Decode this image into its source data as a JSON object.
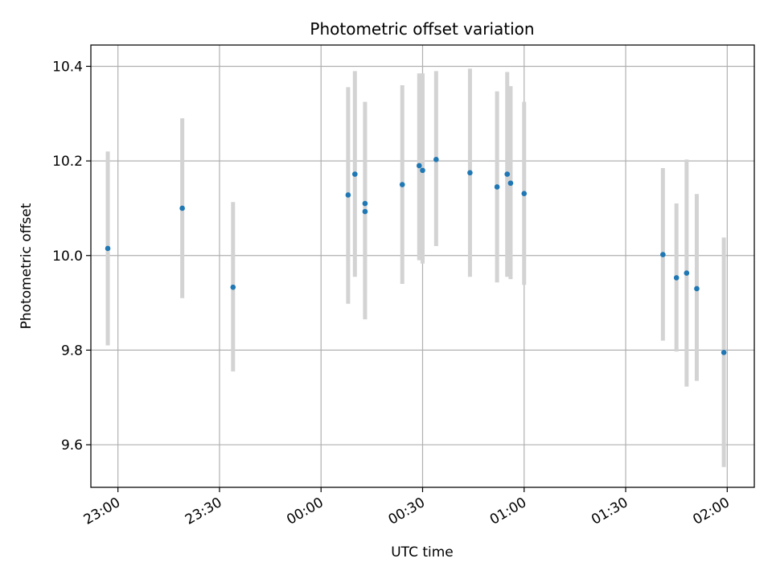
{
  "chart_data": {
    "type": "scatter",
    "title": "Photometric offset variation",
    "xlabel": "UTC time",
    "ylabel": "Photometric offset",
    "x_axis": {
      "kind": "time",
      "range": [
        "22:52",
        "02:08"
      ],
      "ticks": [
        "23:00",
        "23:30",
        "00:00",
        "00:30",
        "01:00",
        "01:30",
        "02:00"
      ]
    },
    "y_axis": {
      "range": [
        9.51,
        10.445
      ],
      "ticks": [
        "9.6",
        "9.8",
        "10.0",
        "10.2",
        "10.4"
      ]
    },
    "grid": true,
    "error_bar_color": "#d3d3d3",
    "point_color": "#1f77b4",
    "series": [
      {
        "points": [
          {
            "x": "22:57",
            "y": 10.015,
            "ylow": 9.81,
            "yhigh": 10.22
          },
          {
            "x": "23:19",
            "y": 10.1,
            "ylow": 9.91,
            "yhigh": 10.29
          },
          {
            "x": "23:34",
            "y": 9.933,
            "ylow": 9.755,
            "yhigh": 10.113
          },
          {
            "x": "00:08",
            "y": 10.128,
            "ylow": 9.898,
            "yhigh": 10.356
          },
          {
            "x": "00:10",
            "y": 10.172,
            "ylow": 9.955,
            "yhigh": 10.39
          },
          {
            "x": "00:13",
            "y": 10.11,
            "ylow": 9.925,
            "yhigh": 10.295
          },
          {
            "x": "00:13",
            "y": 10.093,
            "ylow": 9.865,
            "yhigh": 10.325
          },
          {
            "x": "00:24",
            "y": 10.15,
            "ylow": 9.94,
            "yhigh": 10.36
          },
          {
            "x": "00:29",
            "y": 10.19,
            "ylow": 9.99,
            "yhigh": 10.385
          },
          {
            "x": "00:30",
            "y": 10.18,
            "ylow": 9.983,
            "yhigh": 10.385
          },
          {
            "x": "00:34",
            "y": 10.203,
            "ylow": 10.02,
            "yhigh": 10.39
          },
          {
            "x": "00:44",
            "y": 10.175,
            "ylow": 9.955,
            "yhigh": 10.395
          },
          {
            "x": "00:52",
            "y": 10.145,
            "ylow": 9.943,
            "yhigh": 10.347
          },
          {
            "x": "00:55",
            "y": 10.172,
            "ylow": 9.955,
            "yhigh": 10.388
          },
          {
            "x": "00:56",
            "y": 10.153,
            "ylow": 9.95,
            "yhigh": 10.358
          },
          {
            "x": "01:00",
            "y": 10.131,
            "ylow": 9.938,
            "yhigh": 10.325
          },
          {
            "x": "01:41",
            "y": 10.002,
            "ylow": 9.82,
            "yhigh": 10.185
          },
          {
            "x": "01:45",
            "y": 9.953,
            "ylow": 9.797,
            "yhigh": 10.11
          },
          {
            "x": "01:48",
            "y": 9.963,
            "ylow": 9.723,
            "yhigh": 10.203
          },
          {
            "x": "01:51",
            "y": 9.93,
            "ylow": 9.735,
            "yhigh": 10.13
          },
          {
            "x": "01:59",
            "y": 9.795,
            "ylow": 9.553,
            "yhigh": 10.038
          }
        ]
      }
    ]
  }
}
